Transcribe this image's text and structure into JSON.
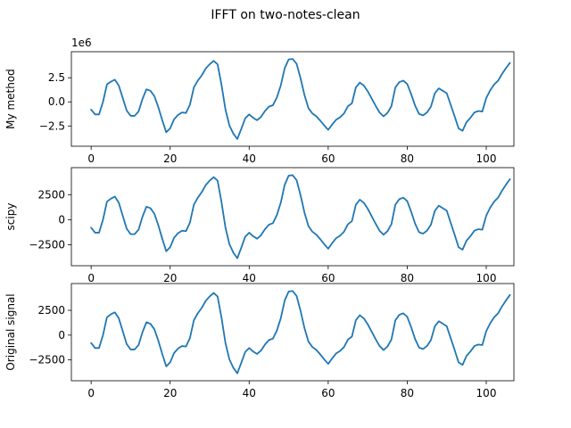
{
  "title": "IFFT on two-notes-clean",
  "chart_data": [
    {
      "type": "line",
      "ylabel": "My method",
      "offset_text": "1e6",
      "scale": 1000,
      "xlim": [
        -5,
        107
      ],
      "ylim": [
        -4600,
        5200
      ],
      "xticks": [
        0,
        20,
        40,
        60,
        80,
        100
      ],
      "yticks": [
        -2500,
        0,
        2500
      ],
      "ytick_labels": [
        "−2.5",
        "0.0",
        "2.5"
      ],
      "show_xtick_labels": true,
      "series": [
        {
          "name": "",
          "x_start": 0,
          "x_step": 1,
          "values": [
            -800,
            -1300,
            -1300,
            0,
            1800,
            2100,
            2300,
            1700,
            400,
            -900,
            -1450,
            -1450,
            -1000,
            300,
            1300,
            1150,
            600,
            -550,
            -1900,
            -3150,
            -2750,
            -1800,
            -1350,
            -1100,
            -1150,
            -300,
            1500,
            2200,
            2750,
            3450,
            3900,
            4250,
            3900,
            1750,
            -800,
            -2450,
            -3300,
            -3850,
            -2800,
            -1700,
            -1300,
            -1650,
            -1900,
            -1550,
            -950,
            -500,
            -350,
            450,
            1700,
            3500,
            4400,
            4450,
            3950,
            2450,
            700,
            -650,
            -1200,
            -1500,
            -1950,
            -2450,
            -2900,
            -2350,
            -1850,
            -1600,
            -1200,
            -450,
            -150,
            1500,
            2000,
            1700,
            1100,
            350,
            -400,
            -1100,
            -1500,
            -1150,
            -450,
            1500,
            2050,
            2200,
            1850,
            800,
            -400,
            -1250,
            -1400,
            -1100,
            -500,
            900,
            1400,
            1150,
            900,
            -300,
            -1500,
            -2750,
            -3000,
            -2100,
            -1650,
            -1100,
            -950,
            -1000,
            400,
            1200,
            1800,
            2200,
            2900,
            3500,
            4050
          ]
        }
      ]
    },
    {
      "type": "line",
      "ylabel": "scipy",
      "scale": 1,
      "xlim": [
        -5,
        107
      ],
      "ylim": [
        -4600,
        5200
      ],
      "xticks": [
        0,
        20,
        40,
        60,
        80,
        100
      ],
      "yticks": [
        -2500,
        0,
        2500
      ],
      "ytick_labels": [
        "−2500",
        "0",
        "2500"
      ],
      "show_xtick_labels": true,
      "series": [
        {
          "name": "",
          "x_start": 0,
          "x_step": 1,
          "values": [
            -800,
            -1300,
            -1300,
            0,
            1800,
            2100,
            2300,
            1700,
            400,
            -900,
            -1450,
            -1450,
            -1000,
            300,
            1300,
            1150,
            600,
            -550,
            -1900,
            -3150,
            -2750,
            -1800,
            -1350,
            -1100,
            -1150,
            -300,
            1500,
            2200,
            2750,
            3450,
            3900,
            4250,
            3900,
            1750,
            -800,
            -2450,
            -3300,
            -3850,
            -2800,
            -1700,
            -1300,
            -1650,
            -1900,
            -1550,
            -950,
            -500,
            -350,
            450,
            1700,
            3500,
            4400,
            4450,
            3950,
            2450,
            700,
            -650,
            -1200,
            -1500,
            -1950,
            -2450,
            -2900,
            -2350,
            -1850,
            -1600,
            -1200,
            -450,
            -150,
            1500,
            2000,
            1700,
            1100,
            350,
            -400,
            -1100,
            -1500,
            -1150,
            -450,
            1500,
            2050,
            2200,
            1850,
            800,
            -400,
            -1250,
            -1400,
            -1100,
            -500,
            900,
            1400,
            1150,
            900,
            -300,
            -1500,
            -2750,
            -3000,
            -2100,
            -1650,
            -1100,
            -950,
            -1000,
            400,
            1200,
            1800,
            2200,
            2900,
            3500,
            4050
          ]
        }
      ]
    },
    {
      "type": "line",
      "ylabel": "Original signal",
      "scale": 1,
      "xlim": [
        -5,
        107
      ],
      "ylim": [
        -4600,
        5200
      ],
      "xticks": [
        0,
        20,
        40,
        60,
        80,
        100
      ],
      "yticks": [
        -2500,
        0,
        2500
      ],
      "ytick_labels": [
        "−2500",
        "0",
        "2500"
      ],
      "show_xtick_labels": true,
      "series": [
        {
          "name": "",
          "x_start": 0,
          "x_step": 1,
          "values": [
            -800,
            -1300,
            -1300,
            0,
            1800,
            2100,
            2300,
            1700,
            400,
            -900,
            -1450,
            -1450,
            -1000,
            300,
            1300,
            1150,
            600,
            -550,
            -1900,
            -3150,
            -2750,
            -1800,
            -1350,
            -1100,
            -1150,
            -300,
            1500,
            2200,
            2750,
            3450,
            3900,
            4250,
            3900,
            1750,
            -800,
            -2450,
            -3300,
            -3850,
            -2800,
            -1700,
            -1300,
            -1650,
            -1900,
            -1550,
            -950,
            -500,
            -350,
            450,
            1700,
            3500,
            4400,
            4450,
            3950,
            2450,
            700,
            -650,
            -1200,
            -1500,
            -1950,
            -2450,
            -2900,
            -2350,
            -1850,
            -1600,
            -1200,
            -450,
            -150,
            1500,
            2000,
            1700,
            1100,
            350,
            -400,
            -1100,
            -1500,
            -1150,
            -450,
            1500,
            2050,
            2200,
            1850,
            800,
            -400,
            -1250,
            -1400,
            -1100,
            -500,
            900,
            1400,
            1150,
            900,
            -300,
            -1500,
            -2750,
            -3000,
            -2100,
            -1650,
            -1100,
            -950,
            -1000,
            400,
            1200,
            1800,
            2200,
            2900,
            3500,
            4050
          ]
        }
      ]
    }
  ]
}
